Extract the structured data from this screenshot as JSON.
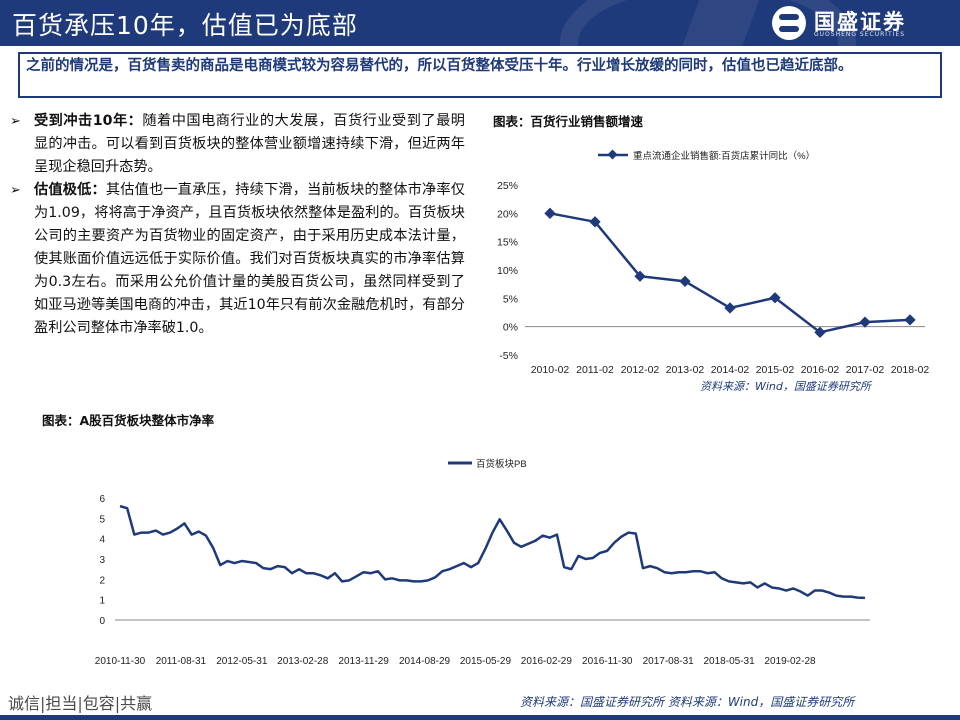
{
  "header": {
    "title": "百货承压10年，估值已为底部",
    "logo_name": "国盛证券",
    "logo_sub": "GUOSHENG SECURITIES"
  },
  "summary": "之前的情况是，百货售卖的商品是电商模式较为容易替代的，所以百货整体受压十年。行业增长放缓的同时，估值也已趋近底部。",
  "bullets": [
    {
      "lead": "受到冲击10年：",
      "text": "随着中国电商行业的大发展，百货行业受到了最明显的冲击。可以看到百货板块的整体营业额增速持续下滑，但近两年呈现企稳回升态势。"
    },
    {
      "lead": "估值极低：",
      "text": "其估值也一直承压，持续下滑，当前板块的整体市净率仅为1.09，将将高于净资产，且百货板块依然整体是盈利的。百货板块公司的主要资产为百货物业的固定资产，由于采用历史成本法计量，使其账面价值远远低于实际价值。我们对百货板块真实的市净率估算为0.3左右。而采用公允价值计量的美股百货公司，虽然同样受到了如亚马逊等美国电商的冲击，其近10年只有前次金融危机时，有部分盈利公司整体市净率破1.0。"
    }
  ],
  "chart1_title": "图表：百货行业销售额增速",
  "chart1_source": "资料来源：Wind，国盛证券研究所",
  "chart2_title": "图表：A股百货板块整体市净率",
  "footer": {
    "motto": "诚信|担当|包容|共赢",
    "source": "资料来源：国盛证券研究所    资料来源：Wind，国盛证券研究所"
  },
  "colors": {
    "primary": "#1f3a7a",
    "line": "#1f3a7a"
  },
  "chart_data": [
    {
      "type": "line",
      "title": "",
      "legend": "重点流通企业销售额:百货店累计同比（%）",
      "legend_position": "top",
      "categories": [
        "2010-02",
        "2011-02",
        "2012-02",
        "2013-02",
        "2014-02",
        "2015-02",
        "2016-02",
        "2017-02",
        "2018-02"
      ],
      "values": [
        20.0,
        18.5,
        8.9,
        8.0,
        3.3,
        5.1,
        -1.0,
        0.8,
        1.2
      ],
      "yticks": [
        "25%",
        "20%",
        "15%",
        "10%",
        "5%",
        "0%",
        "-5%"
      ],
      "ylim": [
        -5,
        25
      ],
      "grid": false,
      "marker": "diamond"
    },
    {
      "type": "line",
      "title": "",
      "legend": "百货板块PB",
      "legend_position": "top",
      "xticks": [
        "2010-11-30",
        "2011-08-31",
        "2012-05-31",
        "2013-02-28",
        "2013-11-29",
        "2014-08-29",
        "2015-05-29",
        "2016-02-29",
        "2016-11-30",
        "2017-08-31",
        "2018-05-31",
        "2019-02-28"
      ],
      "yticks": [
        "0",
        "1",
        "2",
        "3",
        "4",
        "5",
        "6"
      ],
      "ylim": [
        0,
        6
      ],
      "grid": false,
      "values": [
        5.6,
        5.5,
        4.2,
        4.3,
        4.3,
        4.4,
        4.2,
        4.3,
        4.5,
        4.75,
        4.2,
        4.35,
        4.15,
        3.55,
        2.7,
        2.9,
        2.8,
        2.9,
        2.85,
        2.8,
        2.55,
        2.5,
        2.65,
        2.6,
        2.3,
        2.5,
        2.3,
        2.3,
        2.2,
        2.05,
        2.3,
        1.9,
        1.95,
        2.15,
        2.35,
        2.3,
        2.4,
        2.0,
        2.05,
        1.95,
        1.95,
        1.9,
        1.9,
        1.95,
        2.1,
        2.4,
        2.5,
        2.65,
        2.8,
        2.6,
        2.8,
        3.5,
        4.3,
        4.95,
        4.4,
        3.8,
        3.6,
        3.75,
        3.9,
        4.15,
        4.05,
        4.2,
        2.6,
        2.5,
        3.15,
        3.0,
        3.05,
        3.3,
        3.4,
        3.8,
        4.1,
        4.3,
        4.25,
        2.55,
        2.65,
        2.55,
        2.35,
        2.3,
        2.35,
        2.35,
        2.4,
        2.4,
        2.3,
        2.35,
        2.05,
        1.9,
        1.85,
        1.8,
        1.85,
        1.6,
        1.8,
        1.6,
        1.55,
        1.45,
        1.55,
        1.4,
        1.2,
        1.45,
        1.45,
        1.35,
        1.2,
        1.15,
        1.15,
        1.1,
        1.09
      ]
    }
  ]
}
